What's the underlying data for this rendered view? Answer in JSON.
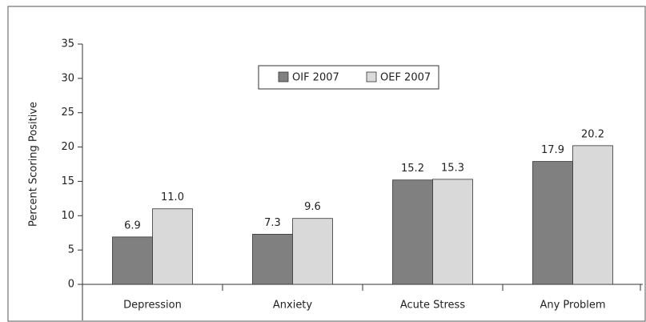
{
  "chart_data": {
    "type": "bar",
    "y_label": "Percent Scoring Positive",
    "categories": [
      "Depression",
      "Anxiety",
      "Acute Stress",
      "Any Problem"
    ],
    "series": [
      {
        "name": "OIF 2007",
        "color": "#808080",
        "values": [
          6.9,
          7.3,
          15.2,
          17.9
        ],
        "value_labels": [
          "6.9",
          "7.3",
          "15.2",
          "17.9"
        ]
      },
      {
        "name": "OEF 2007",
        "color": "#d9d9d9",
        "values": [
          11.0,
          9.6,
          15.3,
          20.2
        ],
        "value_labels": [
          "11.0",
          "9.6",
          "15.3",
          "20.2"
        ]
      }
    ],
    "ylim": [
      0,
      35
    ],
    "yticks": [
      0,
      5,
      10,
      15,
      20,
      25,
      30,
      35
    ],
    "grid": false,
    "legend": "top"
  }
}
